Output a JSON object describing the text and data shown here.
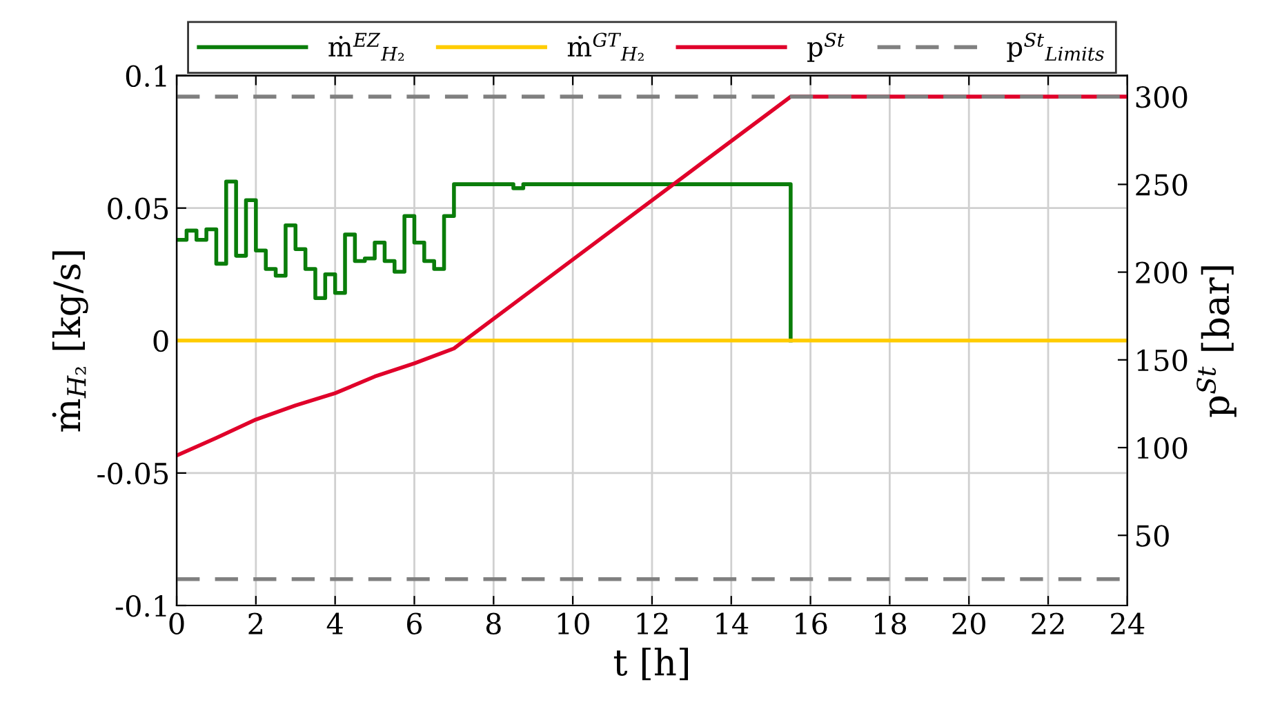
{
  "chart_data": {
    "type": "line",
    "xlabel": "t [h]",
    "ylabel": "ṁ$_{H₂}$ [kg/s]",
    "y2label": "p$^{St}$ [bar]",
    "xlim": [
      0,
      24
    ],
    "xticks": [
      0,
      2,
      4,
      6,
      8,
      10,
      12,
      14,
      16,
      18,
      20,
      22,
      24
    ],
    "ylim": [
      -0.1,
      0.1
    ],
    "yticks": [
      -0.1,
      -0.05,
      0,
      0.05,
      0.1
    ],
    "y2lim": [
      10,
      312
    ],
    "y2ticks": [
      50,
      100,
      150,
      200,
      250,
      300
    ],
    "grid": true,
    "legend": "top",
    "series": [
      {
        "name": "ṁ$^{EZ}$$_{H₂}$",
        "type": "step",
        "color": "#0a7d0a",
        "x": [
          0,
          0.25,
          0.5,
          0.75,
          1.0,
          1.25,
          1.5,
          1.75,
          2.0,
          2.25,
          2.5,
          2.75,
          3.0,
          3.25,
          3.5,
          3.75,
          4.0,
          4.25,
          4.5,
          4.75,
          5.0,
          5.25,
          5.5,
          5.75,
          6.0,
          6.25,
          6.5,
          6.75,
          7.0,
          8.5,
          8.75,
          15.5
        ],
        "values": [
          0.038,
          0.0415,
          0.038,
          0.042,
          0.029,
          0.06,
          0.032,
          0.053,
          0.034,
          0.027,
          0.0245,
          0.0435,
          0.0345,
          0.027,
          0.016,
          0.025,
          0.018,
          0.04,
          0.03,
          0.031,
          0.037,
          0.03,
          0.026,
          0.047,
          0.037,
          0.03,
          0.027,
          0.047,
          0.059,
          0.0575,
          0.059,
          0
        ]
      },
      {
        "name": "ṁ$^{GT}$$_{H₂}$",
        "color": "#ffcc00",
        "x": [
          0,
          24
        ],
        "values": [
          0,
          0
        ]
      },
      {
        "name": "p$^{St}$",
        "axis": "y2",
        "color": "#e0002a",
        "x": [
          0,
          1,
          2,
          3,
          4,
          5,
          6,
          7,
          15.5,
          24
        ],
        "values": [
          95.5,
          105.5,
          116,
          124,
          131,
          140.5,
          148,
          156.5,
          300,
          300
        ]
      },
      {
        "name": "p$^{St}$$_{Limits}$",
        "axis": "y2",
        "color": "#808080",
        "line_style": "dashed",
        "x": [
          0,
          24
        ],
        "values": [
          300,
          300
        ]
      },
      {
        "axis": "y2",
        "color": "#808080",
        "line_style": "dashed",
        "x": [
          0,
          24
        ],
        "values": [
          25,
          25
        ]
      }
    ]
  }
}
